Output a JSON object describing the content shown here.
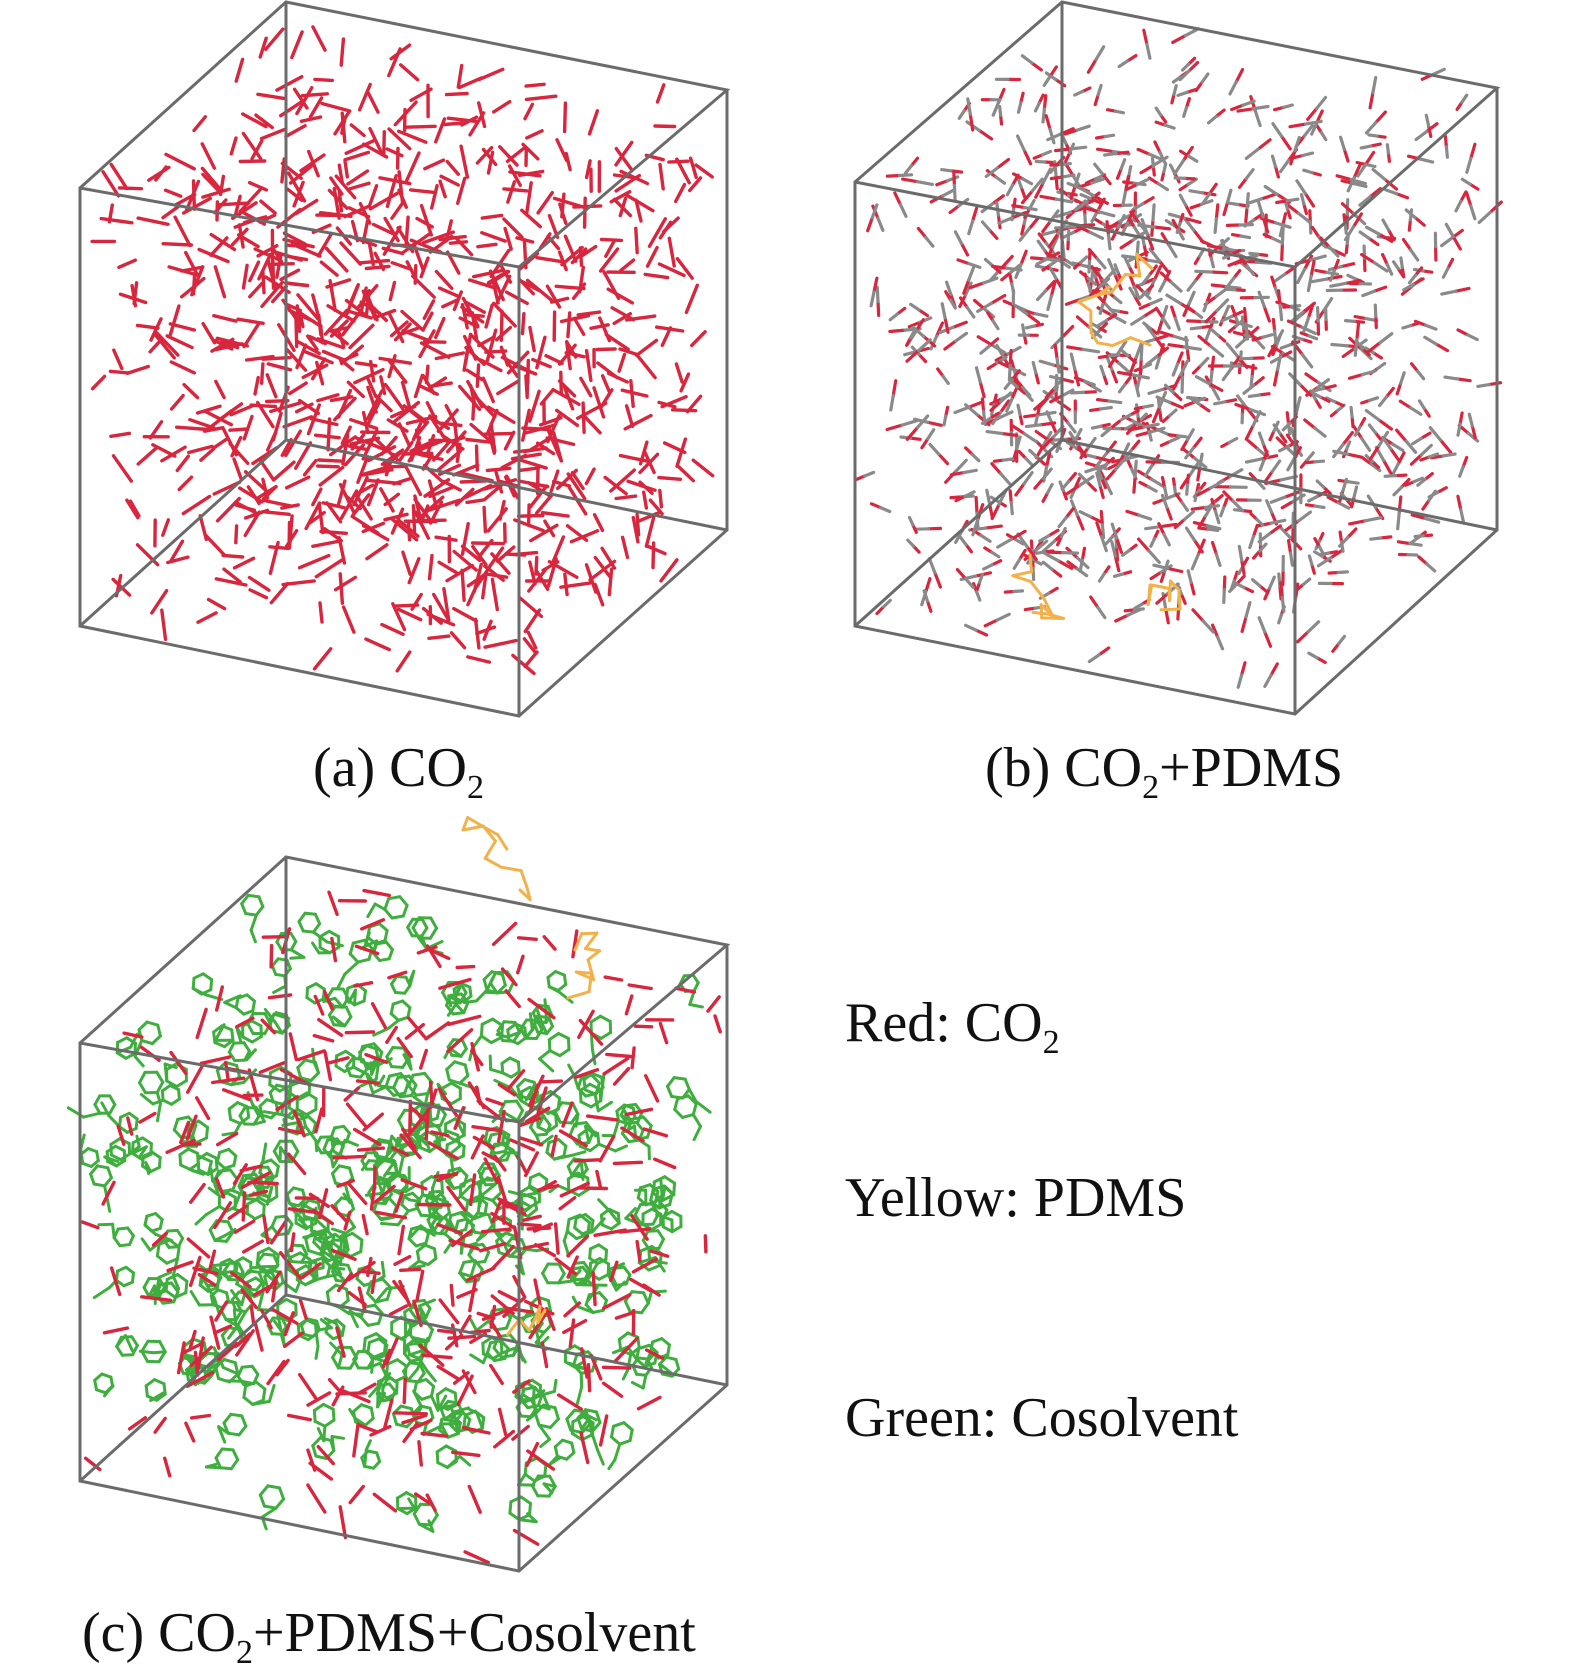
{
  "panels": [
    {
      "id": "a",
      "caption_prefix": "(a) CO",
      "caption_sub": "2",
      "caption_suffix": "",
      "components": [
        "CO2"
      ]
    },
    {
      "id": "b",
      "caption_prefix": "(b) CO",
      "caption_sub": "2",
      "caption_suffix": "+PDMS",
      "components": [
        "CO2",
        "PDMS"
      ]
    },
    {
      "id": "c",
      "caption_prefix": "(c) CO",
      "caption_sub": "2",
      "caption_suffix": "+PDMS+Cosolvent",
      "components": [
        "CO2",
        "PDMS",
        "Cosolvent"
      ]
    }
  ],
  "legend": {
    "red_prefix": "Red: CO",
    "red_sub": "2",
    "yellow": "Yellow: PDMS",
    "green": "Green: Cosolvent"
  },
  "colors": {
    "co2": "#d7263d",
    "co2_carbon": "#8a8a8a",
    "pdms": "#f2b14a",
    "cosolvent": "#3fae3f",
    "box_edge": "#6b6b6b"
  }
}
